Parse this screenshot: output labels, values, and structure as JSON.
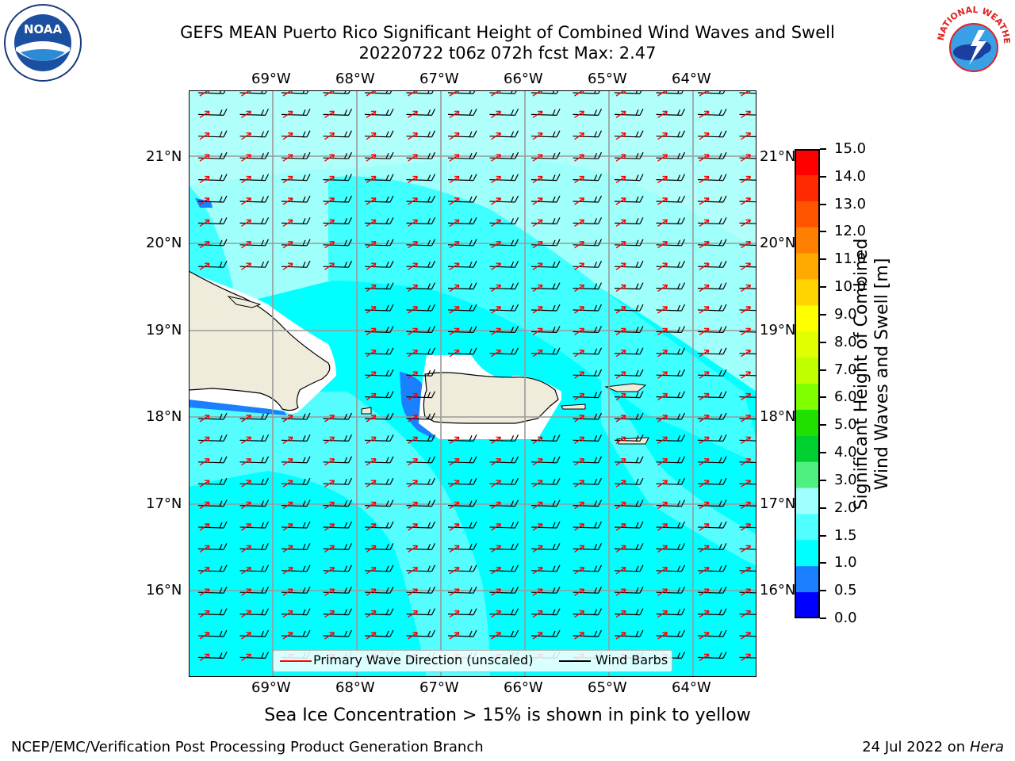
{
  "header": {
    "title_line1": "GEFS MEAN Puerto Rico Significant Height of Combined Wind Waves and Swell",
    "title_line2": "20220722 t06z 072h fcst   Max: 2.47",
    "left_logo": "NOAA",
    "right_logo_text": "NATIONAL WEATHER SERVICE"
  },
  "map": {
    "lon_labels": [
      "69°W",
      "68°W",
      "67°W",
      "66°W",
      "65°W",
      "64°W"
    ],
    "lat_labels": [
      "21°N",
      "20°N",
      "19°N",
      "18°N",
      "17°N",
      "16°N"
    ],
    "barb_color": "#000000",
    "wave_dir_color": "#ff0000",
    "land_color": "#efecdc"
  },
  "legend": {
    "wave_dir": "Primary Wave Direction (unscaled)",
    "wind_barbs": "Wind Barbs"
  },
  "colorbar": {
    "label_line1": "Significant Height of Combined",
    "label_line2": "Wind Waves and Swell [m]",
    "ticks": [
      "15.0",
      "14.0",
      "13.0",
      "12.0",
      "11.0",
      "10.0",
      "9.0",
      "8.0",
      "7.0",
      "6.0",
      "5.0",
      "4.0",
      "3.0",
      "2.0",
      "1.5",
      "1.0",
      "0.5",
      "0.0"
    ],
    "colors": [
      "#ff0000",
      "#ff2a00",
      "#ff5500",
      "#ff8000",
      "#ffaa00",
      "#ffd400",
      "#ffff00",
      "#e0ff00",
      "#c0ff00",
      "#80ff00",
      "#20e000",
      "#00d030",
      "#50f080",
      "#a0ffff",
      "#50ffff",
      "#00ffff",
      "#1a80ff",
      "#0000ff"
    ]
  },
  "caption": "Sea Ice Concentration > 15% is shown in pink to yellow",
  "footer": {
    "left": "NCEP/EMC/Verification Post Processing Product Generation Branch",
    "right_prefix": "24 Jul 2022 on ",
    "right_host": "Hera"
  }
}
